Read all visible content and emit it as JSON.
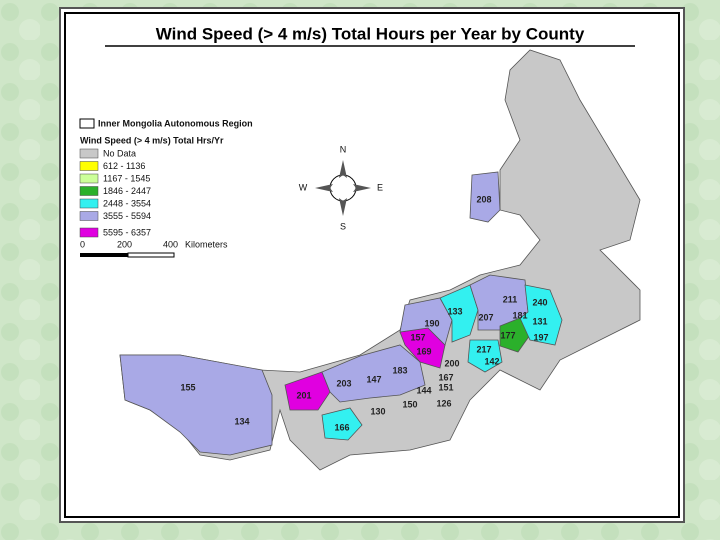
{
  "title": "Wind Speed (> 4 m/s) Total Hours per Year by County",
  "legend": {
    "region": "Inner Mongolia Autonomous Region",
    "heading": "Wind Speed (> 4 m/s) Total Hrs/Yr",
    "items": [
      "No Data",
      "612 - 1136",
      "1167 - 1545",
      "1846 - 2447",
      "2448 - 3554",
      "3555 - 5594",
      "5595 - 6357"
    ]
  },
  "compass": {
    "n": "N",
    "s": "S",
    "e": "E",
    "w": "W"
  },
  "scale": {
    "ticks": [
      "0",
      "200",
      "400"
    ],
    "unit": "Kilometers"
  },
  "labels": [
    "208",
    "211",
    "240",
    "133",
    "207",
    "181",
    "131",
    "190",
    "177",
    "197",
    "157",
    "169",
    "217",
    "200",
    "142",
    "183",
    "167",
    "147",
    "203",
    "155",
    "144",
    "201",
    "151",
    "130",
    "150",
    "126",
    "134",
    "166"
  ]
}
